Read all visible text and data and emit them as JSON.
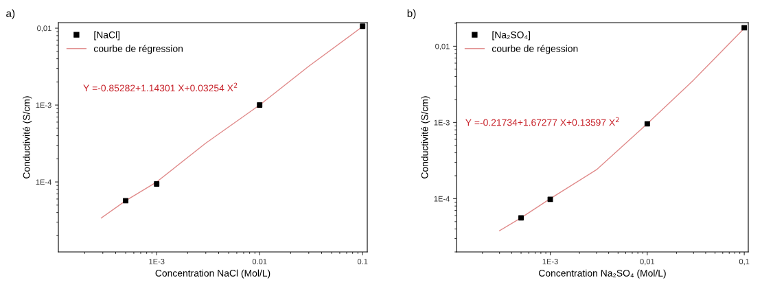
{
  "chart_data": [
    {
      "type": "scatter",
      "title": "a)",
      "xlabel": "Concentration NaCl (Mol/L)",
      "ylabel": "Conductivité (S/cm)",
      "log": "xy",
      "grid": false,
      "legend": "top left",
      "xlim": [
        0.000111,
        0.111
      ],
      "ylim": [
        1.23e-05,
        0.0118
      ],
      "xticks": [
        {
          "value": 0.001,
          "label": "1E-3"
        },
        {
          "value": 0.01,
          "label": "0.01"
        },
        {
          "value": 0.1,
          "label": "0.1"
        }
      ],
      "yticks": [
        {
          "value": 0.0001,
          "label": "1E-4"
        },
        {
          "value": 0.001,
          "label": "1E-3"
        },
        {
          "value": 0.01,
          "label": "0,01"
        }
      ],
      "annotations": [
        "Y =-0.85282+1.14301 X+0.03254 X$^{2}$"
      ],
      "series": [
        {
          "name": "[NaCl]",
          "color": "#000000",
          "marker": "square",
          "x": [
            0.0005,
            0.001,
            0.01,
            0.1
          ],
          "values": [
            5.7e-05,
            9.4e-05,
            0.001,
            0.0106
          ]
        },
        {
          "name": "courbe de régression",
          "type": "line",
          "color": "#e08a8a",
          "marker": "none",
          "line_style": "solid",
          "x": [
            0.00029,
            0.0005,
            0.001,
            0.003,
            0.01,
            0.03,
            0.1
          ],
          "values": [
            3.4e-05,
            5.7e-05,
            0.0001,
            0.00032,
            0.001,
            0.0032,
            0.0105
          ]
        }
      ]
    },
    {
      "type": "scatter",
      "title": "b)",
      "xlabel": "Concentration Na₂SO₄ (Mol/L)",
      "ylabel": "Conductivité (S/cm)",
      "log": "xy",
      "grid": false,
      "legend": "top left",
      "xlim": [
        0.000108,
        0.11
      ],
      "ylim": [
        2e-05,
        0.0204
      ],
      "xticks": [
        {
          "value": 0.001,
          "label": "1E-3"
        },
        {
          "value": 0.01,
          "label": "0,01"
        },
        {
          "value": 0.1,
          "label": "0,1"
        }
      ],
      "yticks": [
        {
          "value": 0.0001,
          "label": "1E-4"
        },
        {
          "value": 0.001,
          "label": "1E-3"
        },
        {
          "value": 0.01,
          "label": "0,01"
        }
      ],
      "annotations": [
        "Y =-0.21734+1.67277 X+0.13597 X$^{2}$"
      ],
      "series": [
        {
          "name": "[Na₂SO₄]",
          "color": "#000000",
          "marker": "square",
          "x": [
            0.0005,
            0.001,
            0.01,
            0.1
          ],
          "values": [
            5.6e-05,
            9.8e-05,
            0.00096,
            0.0175
          ]
        },
        {
          "name": "courbe de régession",
          "type": "line",
          "color": "#e08a8a",
          "marker": "none",
          "line_style": "solid",
          "x": [
            0.0003,
            0.0005,
            0.001,
            0.003,
            0.01,
            0.03,
            0.1
          ],
          "values": [
            3.8e-05,
            5.6e-05,
            0.0001,
            0.00024,
            0.00096,
            0.0036,
            0.0172
          ]
        }
      ]
    }
  ]
}
